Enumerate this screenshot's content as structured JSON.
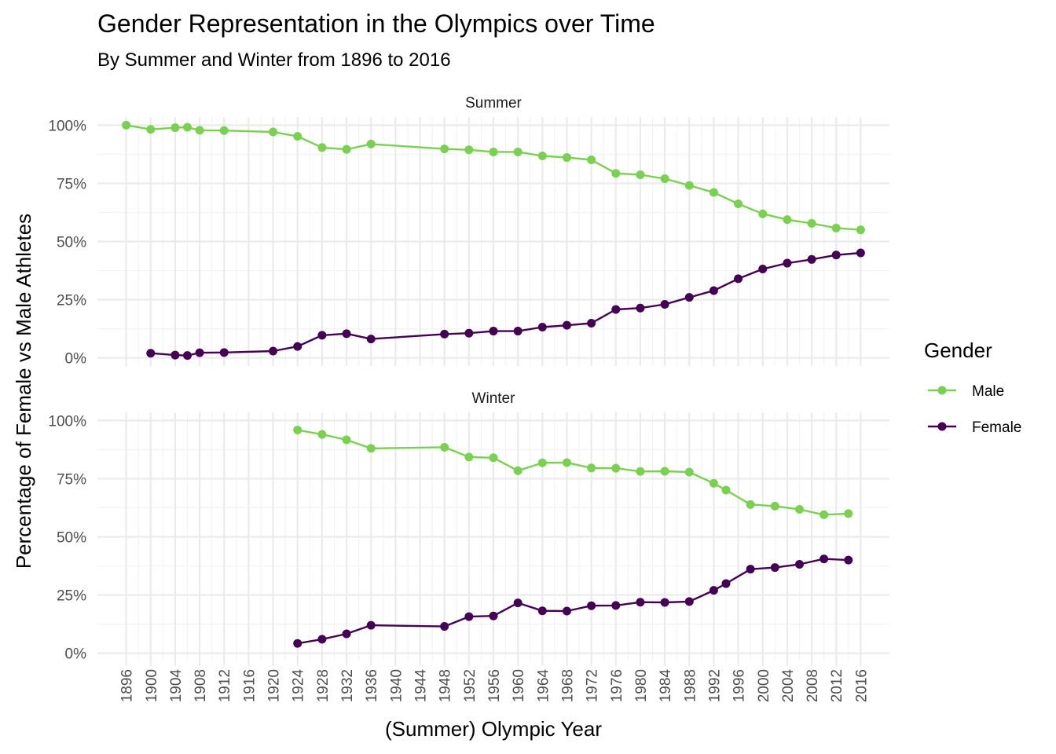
{
  "chart_data": {
    "type": "line",
    "title": "Gender Representation in the Olympics over Time",
    "subtitle": "By Summer and Winter from 1896 to 2016",
    "xlabel": "(Summer) Olympic Year",
    "ylabel": "Percentage of Female vs Male Athletes",
    "x_ticks": [
      "1896",
      "1900",
      "1904",
      "1908",
      "1912",
      "1916",
      "1920",
      "1924",
      "1928",
      "1932",
      "1936",
      "1940",
      "1944",
      "1948",
      "1952",
      "1956",
      "1960",
      "1964",
      "1968",
      "1972",
      "1976",
      "1980",
      "1984",
      "1988",
      "1992",
      "1996",
      "2000",
      "2004",
      "2008",
      "2012",
      "2016"
    ],
    "y_ticks": [
      "0%",
      "25%",
      "50%",
      "75%",
      "100%"
    ],
    "xlim": [
      1891.3,
      2020.7
    ],
    "ylim": [
      -0.035,
      1.035
    ],
    "grid": true,
    "legend": {
      "title": "Gender",
      "placement": "right",
      "entries": [
        {
          "name": "Male",
          "color": "#7ad151"
        },
        {
          "name": "Female",
          "color": "#440154"
        }
      ]
    },
    "panels": [
      {
        "name": "Summer",
        "series": [
          {
            "name": "Male",
            "color": "#7ad151",
            "x": [
              1896,
              1900,
              1904,
              1906,
              1908,
              1912,
              1920,
              1924,
              1928,
              1932,
              1936,
              1948,
              1952,
              1956,
              1960,
              1964,
              1968,
              1972,
              1976,
              1980,
              1984,
              1988,
              1992,
              1996,
              2000,
              2004,
              2008,
              2012,
              2016
            ],
            "values": [
              1.0,
              0.982,
              0.989,
              0.991,
              0.978,
              0.977,
              0.971,
              0.952,
              0.904,
              0.896,
              0.919,
              0.898,
              0.894,
              0.885,
              0.885,
              0.868,
              0.861,
              0.851,
              0.793,
              0.787,
              0.77,
              0.741,
              0.711,
              0.662,
              0.619,
              0.594,
              0.578,
              0.558,
              0.55
            ]
          },
          {
            "name": "Female",
            "color": "#440154",
            "x": [
              1900,
              1904,
              1906,
              1908,
              1912,
              1920,
              1924,
              1928,
              1932,
              1936,
              1948,
              1952,
              1956,
              1960,
              1964,
              1968,
              1972,
              1976,
              1980,
              1984,
              1988,
              1992,
              1996,
              2000,
              2004,
              2008,
              2012,
              2016
            ],
            "values": [
              0.02,
              0.012,
              0.01,
              0.022,
              0.023,
              0.029,
              0.049,
              0.097,
              0.104,
              0.081,
              0.102,
              0.106,
              0.115,
              0.115,
              0.132,
              0.14,
              0.149,
              0.208,
              0.214,
              0.23,
              0.26,
              0.289,
              0.34,
              0.382,
              0.407,
              0.423,
              0.442,
              0.451
            ]
          }
        ]
      },
      {
        "name": "Winter",
        "series": [
          {
            "name": "Male",
            "color": "#7ad151",
            "x": [
              1924,
              1928,
              1932,
              1936,
              1948,
              1952,
              1956,
              1960,
              1964,
              1968,
              1972,
              1976,
              1980,
              1984,
              1988,
              1992,
              1994,
              1998,
              2002,
              2006,
              2010,
              2014
            ],
            "values": [
              0.959,
              0.94,
              0.917,
              0.88,
              0.885,
              0.843,
              0.84,
              0.784,
              0.818,
              0.819,
              0.796,
              0.795,
              0.781,
              0.782,
              0.778,
              0.73,
              0.701,
              0.639,
              0.632,
              0.618,
              0.595,
              0.6
            ]
          },
          {
            "name": "Female",
            "color": "#440154",
            "x": [
              1924,
              1928,
              1932,
              1936,
              1948,
              1952,
              1956,
              1960,
              1964,
              1968,
              1972,
              1976,
              1980,
              1984,
              1988,
              1992,
              1994,
              1998,
              2002,
              2006,
              2010,
              2014
            ],
            "values": [
              0.042,
              0.06,
              0.083,
              0.12,
              0.115,
              0.157,
              0.16,
              0.216,
              0.182,
              0.181,
              0.204,
              0.205,
              0.219,
              0.218,
              0.222,
              0.27,
              0.299,
              0.361,
              0.368,
              0.382,
              0.405,
              0.4
            ]
          }
        ]
      }
    ]
  }
}
